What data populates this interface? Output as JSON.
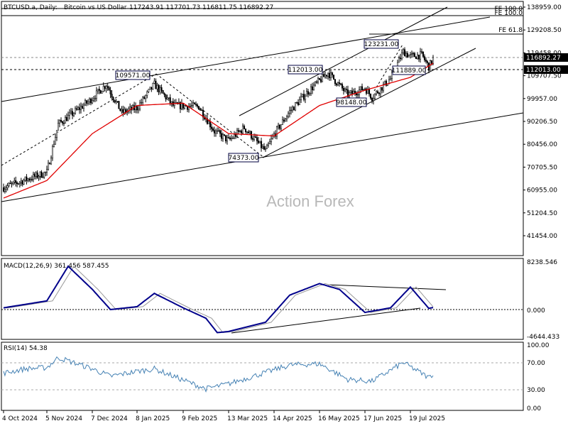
{
  "header": {
    "symbol": "BTCUSD.a, Daily:",
    "description": "Bitcoin vs US Dollar",
    "ohlc": "117243.91 117701.73 116811.75 116892.27"
  },
  "watermark": "Action Forex",
  "colors": {
    "candles": "#000000",
    "moving_average": "#e00000",
    "trendlines": "#000000",
    "macd": "#00008b",
    "signal": "#999999",
    "rsi": "#4682b4",
    "price_tag_bg": "#000000",
    "price_tag_text": "#ffffff"
  },
  "x_axis": {
    "labels": [
      "4 Oct 2024",
      "5 Nov 2024",
      "7 Dec 2024",
      "8 Jan 2025",
      "9 Feb 2025",
      "13 Mar 2025",
      "14 Apr 2025",
      "16 May 2025",
      "17 Jun 2025",
      "19 Jul 2025"
    ]
  },
  "price_panel": {
    "ticks": [
      "138959.00",
      "129208.50",
      "119458.00",
      "109707.50",
      "99957.00",
      "90206.50",
      "80456.00",
      "70705.50",
      "60955.00",
      "51204.50",
      "41454.00"
    ],
    "current_price": "116892.27",
    "current_price_tag": "116892.27",
    "marker_tag": "112013.00",
    "fib_labels": [
      {
        "text": "FE 100.0",
        "value": 138959
      },
      {
        "text": "FE 100.0",
        "value": 137800
      },
      {
        "text": "FE 61.8",
        "value": 129500
      }
    ],
    "annotations": [
      {
        "text": "109571.00",
        "value": 109571
      },
      {
        "text": "74373.00",
        "value": 74373
      },
      {
        "text": "112013.00",
        "value": 112013
      },
      {
        "text": "98148.00",
        "value": 98148
      },
      {
        "text": "123231.00",
        "value": 123231
      },
      {
        "text": "111889.00",
        "value": 111889
      }
    ]
  },
  "macd_panel": {
    "title": "MACD(12,26,9) 361.456 587.455",
    "ticks": [
      "8238.546",
      "0.000",
      "-4644.433"
    ]
  },
  "rsi_panel": {
    "title": "RSI(14) 54.38",
    "ticks": [
      "100.00",
      "70.00",
      "30.00",
      "0.00"
    ]
  },
  "chart_data": {
    "type": "candlestick",
    "y_range": [
      36000,
      142000
    ],
    "x_labels": [
      "4 Oct 2024",
      "5 Nov 2024",
      "7 Dec 2024",
      "8 Jan 2025",
      "9 Feb 2025",
      "13 Mar 2025",
      "14 Apr 2025",
      "16 May 2025",
      "17 Jun 2025",
      "19 Jul 2025"
    ],
    "close_keypoints": [
      [
        "4 Oct 2024",
        62000
      ],
      [
        "5 Nov 2024",
        68500
      ],
      [
        "13 Nov 2024",
        89000
      ],
      [
        "5 Dec 2024",
        99000
      ],
      [
        "17 Dec 2024",
        106000
      ],
      [
        "28 Dec 2024",
        94000
      ],
      [
        "8 Jan 2025",
        96000
      ],
      [
        "20 Jan 2025",
        106000
      ],
      [
        "2 Feb 2025",
        97000
      ],
      [
        "20 Feb 2025",
        96500
      ],
      [
        "3 Mar 2025",
        86000
      ],
      [
        "13 Mar 2025",
        82000
      ],
      [
        "24 Mar 2025",
        87500
      ],
      [
        "8 Apr 2025",
        77500
      ],
      [
        "14 Apr 2025",
        84500
      ],
      [
        "25 Apr 2025",
        94500
      ],
      [
        "8 May 2025",
        103000
      ],
      [
        "22 May 2025",
        111000
      ],
      [
        "5 Jun 2025",
        101500
      ],
      [
        "17 Jun 2025",
        104500
      ],
      [
        "22 Jun 2025",
        100500
      ],
      [
        "5 Jul 2025",
        108500
      ],
      [
        "14 Jul 2025",
        120000
      ],
      [
        "19 Jul 2025",
        118000
      ],
      [
        "27 Jul 2025",
        118500
      ],
      [
        "1 Aug 2025",
        113500
      ],
      [
        "4 Aug 2025",
        116892
      ]
    ],
    "moving_average_keypoints": [
      [
        "4 Oct 2024",
        57500
      ],
      [
        "5 Nov 2024",
        65000
      ],
      [
        "7 Dec 2024",
        85000
      ],
      [
        "8 Jan 2025",
        97000
      ],
      [
        "9 Feb 2025",
        98000
      ],
      [
        "13 Mar 2025",
        85000
      ],
      [
        "14 Apr 2025",
        84000
      ],
      [
        "16 May 2025",
        97000
      ],
      [
        "17 Jun 2025",
        103500
      ],
      [
        "19 Jul 2025",
        109000
      ],
      [
        "4 Aug 2025",
        115000
      ]
    ],
    "macd": {
      "y_range": [
        -4644.433,
        8238.546
      ],
      "keypoints": [
        [
          "4 Oct 2024",
          300
        ],
        [
          "5 Nov 2024",
          1500
        ],
        [
          "20 Nov 2024",
          7500
        ],
        [
          "7 Dec 2024",
          3500
        ],
        [
          "20 Dec 2024",
          0
        ],
        [
          "8 Jan 2025",
          500
        ],
        [
          "20 Jan 2025",
          2800
        ],
        [
          "9 Feb 2025",
          300
        ],
        [
          "25 Feb 2025",
          -1500
        ],
        [
          "5 Mar 2025",
          -4000
        ],
        [
          "13 Mar 2025",
          -3800
        ],
        [
          "8 Apr 2025",
          -2200
        ],
        [
          "25 Apr 2025",
          2500
        ],
        [
          "16 May 2025",
          4500
        ],
        [
          "30 May 2025",
          3500
        ],
        [
          "17 Jun 2025",
          -500
        ],
        [
          "5 Jul 2025",
          300
        ],
        [
          "19 Jul 2025",
          3900
        ],
        [
          "1 Aug 2025",
          200
        ],
        [
          "4 Aug 2025",
          361.456
        ]
      ]
    },
    "rsi": {
      "y_range": [
        0,
        100
      ],
      "levels": [
        70,
        30
      ],
      "keypoints": [
        [
          "4 Oct 2024",
          55
        ],
        [
          "20 Oct 2024",
          62
        ],
        [
          "5 Nov 2024",
          64
        ],
        [
          "13 Nov 2024",
          80
        ],
        [
          "7 Dec 2024",
          62
        ],
        [
          "20 Dec 2024",
          50
        ],
        [
          "8 Jan 2025",
          58
        ],
        [
          "20 Jan 2025",
          62
        ],
        [
          "9 Feb 2025",
          44
        ],
        [
          "25 Feb 2025",
          30
        ],
        [
          "13 Mar 2025",
          38
        ],
        [
          "25 Apr 2025",
          68
        ],
        [
          "16 May 2025",
          70
        ],
        [
          "5 Jun 2025",
          45
        ],
        [
          "22 Jun 2025",
          42
        ],
        [
          "14 Jul 2025",
          72
        ],
        [
          "1 Aug 2025",
          48
        ],
        [
          "4 Aug 2025",
          54.38
        ]
      ]
    }
  }
}
